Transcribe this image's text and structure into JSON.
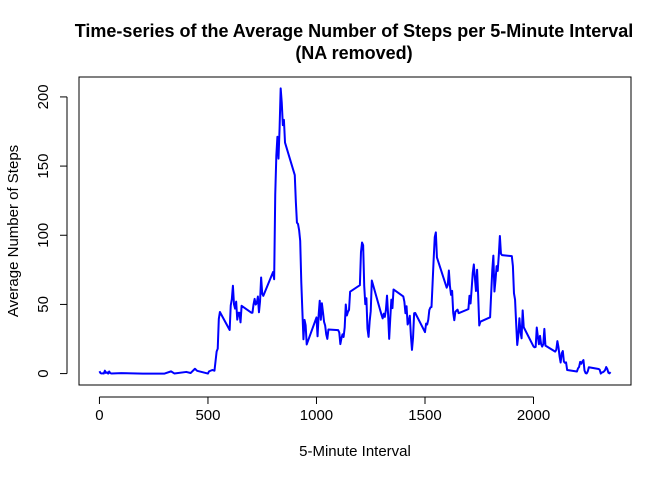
{
  "chart_data": {
    "type": "line",
    "title": "Time-series of the Average Number of Steps per 5-Minute Interval",
    "subtitle": "(NA removed)",
    "x_label": "5-Minute Interval",
    "y_label": "Average Number of Steps",
    "color": "blue",
    "xlim": [
      -94.2,
      2449.2
    ],
    "ylim": [
      -8.25,
      214.4
    ],
    "xticks": [
      0,
      500,
      1000,
      1500,
      2000
    ],
    "yticks": [
      0,
      50,
      100,
      150,
      200
    ],
    "x": [
      0,
      5,
      10,
      15,
      20,
      25,
      30,
      35,
      40,
      45,
      50,
      55,
      100,
      200,
      300,
      330,
      345,
      400,
      420,
      440,
      450,
      500,
      505,
      520,
      530,
      540,
      545,
      550,
      555,
      600,
      605,
      610,
      615,
      620,
      625,
      630,
      635,
      640,
      645,
      650,
      655,
      700,
      705,
      710,
      715,
      720,
      725,
      730,
      735,
      740,
      745,
      750,
      755,
      800,
      805,
      810,
      815,
      820,
      825,
      830,
      835,
      840,
      845,
      850,
      855,
      900,
      905,
      910,
      915,
      920,
      925,
      930,
      935,
      940,
      945,
      950,
      955,
      1000,
      1005,
      1010,
      1015,
      1020,
      1025,
      1030,
      1035,
      1040,
      1045,
      1050,
      1055,
      1100,
      1105,
      1110,
      1115,
      1120,
      1125,
      1130,
      1135,
      1140,
      1145,
      1150,
      1155,
      1200,
      1205,
      1210,
      1215,
      1220,
      1225,
      1230,
      1235,
      1240,
      1245,
      1250,
      1255,
      1300,
      1305,
      1310,
      1315,
      1320,
      1325,
      1330,
      1335,
      1340,
      1345,
      1350,
      1355,
      1400,
      1405,
      1410,
      1415,
      1420,
      1425,
      1430,
      1435,
      1440,
      1445,
      1450,
      1455,
      1500,
      1505,
      1510,
      1515,
      1520,
      1525,
      1530,
      1535,
      1540,
      1545,
      1550,
      1555,
      1600,
      1605,
      1610,
      1615,
      1620,
      1625,
      1630,
      1635,
      1640,
      1645,
      1650,
      1655,
      1700,
      1705,
      1710,
      1715,
      1720,
      1725,
      1730,
      1735,
      1740,
      1745,
      1750,
      1755,
      1800,
      1805,
      1810,
      1815,
      1820,
      1825,
      1830,
      1835,
      1840,
      1845,
      1850,
      1855,
      1900,
      1905,
      1910,
      1915,
      1920,
      1925,
      1930,
      1935,
      1940,
      1945,
      1950,
      1955,
      2000,
      2005,
      2010,
      2015,
      2020,
      2025,
      2030,
      2035,
      2040,
      2045,
      2050,
      2055,
      2100,
      2105,
      2110,
      2115,
      2120,
      2125,
      2130,
      2135,
      2140,
      2145,
      2150,
      2155,
      2200,
      2205,
      2210,
      2215,
      2220,
      2225,
      2230,
      2235,
      2240,
      2245,
      2250,
      2255,
      2300,
      2305,
      2310,
      2315,
      2320,
      2325,
      2330,
      2335,
      2340,
      2345,
      2350,
      2355
    ],
    "values": [
      1.7,
      0.3,
      0.1,
      0.2,
      0.1,
      2.1,
      0.5,
      0.9,
      0,
      1.5,
      0.3,
      0.1,
      0.3,
      0,
      0,
      1.6,
      0.1,
      1.2,
      0.4,
      3.5,
      2,
      0,
      1.6,
      2.6,
      2.1,
      16,
      18,
      39.5,
      44.5,
      31.5,
      49.3,
      53.8,
      63.5,
      50,
      47,
      52,
      39,
      44,
      44,
      37,
      49,
      44,
      44,
      50,
      54,
      49.9,
      50.9,
      55.7,
      44.3,
      52.3,
      69.5,
      57.8,
      56.2,
      73.4,
      68.2,
      129.4,
      157.5,
      171.2,
      155.4,
      177.3,
      206.2,
      195.9,
      179.6,
      183.4,
      167,
      143.5,
      124,
      109.1,
      108.1,
      103.7,
      95.97,
      66.2,
      45.2,
      24.8,
      38.8,
      34.98,
      21.06,
      40.6,
      26.98,
      42.4,
      52.7,
      38.9,
      50.8,
      44.3,
      37.4,
      34.7,
      28.3,
      25.1,
      31.9,
      31.4,
      29.7,
      21.3,
      25.5,
      28.4,
      26.5,
      33.4,
      49.98,
      42,
      44.6,
      46,
      59.2,
      63.9,
      87.7,
      94.8,
      92.8,
      63.4,
      50.2,
      54.5,
      32.4,
      26.5,
      37.7,
      45.1,
      67.3,
      42.3,
      39.9,
      43.3,
      40.98,
      46.2,
      56.4,
      42.8,
      25.1,
      39.97,
      53.5,
      47.3,
      60.8,
      55.8,
      51.96,
      43.6,
      48.7,
      35.5,
      37.5,
      41.8,
      27.5,
      17.1,
      26.1,
      43.6,
      43.8,
      30,
      36.1,
      35.5,
      38.8,
      45.96,
      47.8,
      48.1,
      65.3,
      82.9,
      98.7,
      102.1,
      83.96,
      62.1,
      64.1,
      74.5,
      63.2,
      56.9,
      59.8,
      43.9,
      38.6,
      44.7,
      45.5,
      46.2,
      43.7,
      46.6,
      56.3,
      50.7,
      61.2,
      72.7,
      78.9,
      68.9,
      59.7,
      75.1,
      56.5,
      34.8,
      37.5,
      40.7,
      58,
      74.7,
      85.3,
      59.3,
      67.8,
      77.7,
      74.2,
      85.3,
      99.5,
      86.6,
      85.6,
      84.9,
      77.8,
      58,
      53.4,
      36.3,
      20.7,
      27.4,
      40,
      30.2,
      25.5,
      45.7,
      33.5,
      19.6,
      19,
      19.3,
      33.3,
      26.8,
      21.2,
      27.3,
      21.3,
      19.5,
      21.3,
      32.3,
      20.2,
      15.9,
      17.2,
      23.5,
      19.2,
      12.5,
      8,
      14.7,
      16.3,
      8.7,
      7.8,
      8.1,
      2.6,
      1.5,
      3.7,
      4.8,
      8.5,
      7.1,
      8.7,
      9.8,
      2.2,
      0.3,
      0.1,
      1.6,
      4.6,
      3.3,
      2.8,
      0,
      0.8,
      1,
      1.6,
      2.6,
      4.7,
      3.3,
      0.6,
      0.2,
      1.1
    ]
  }
}
